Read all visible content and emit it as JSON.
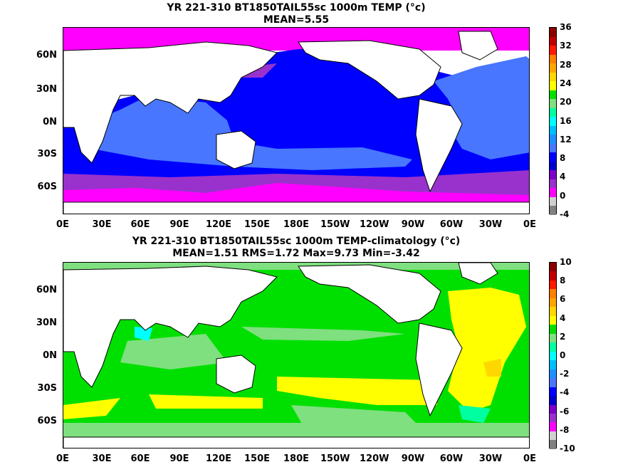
{
  "panels": [
    {
      "title_line1": "YR 221-310 BT1850TAIL55sc 1000m TEMP",
      "units": "(°c)",
      "title_line2": "MEAN=5.55",
      "colorbar": {
        "labels": [
          "36",
          "32",
          "28",
          "24",
          "20",
          "16",
          "12",
          "8",
          "4",
          "0",
          "-4"
        ],
        "colors": [
          "#8b0000",
          "#c00000",
          "#ff1a00",
          "#ff7f00",
          "#ffa500",
          "#ffd700",
          "#ffff00",
          "#00e000",
          "#7fe07f",
          "#00ffa0",
          "#00ffff",
          "#00bfff",
          "#1e90ff",
          "#4876ff",
          "#0000ff",
          "#0000cd",
          "#7b00c8",
          "#9932cc",
          "#ff00ff",
          "#d0d0d0",
          "#808080"
        ]
      }
    },
    {
      "title_line1": "YR 221-310 BT1850TAIL55sc 1000m TEMP-climatology",
      "units": "(°c)",
      "title_line2": "MEAN=1.51   RMS=1.72   Max=9.73   Min=-3.42",
      "colorbar": {
        "labels": [
          "10",
          "8",
          "6",
          "4",
          "2",
          "0",
          "-2",
          "-4",
          "-6",
          "-8",
          "-10"
        ],
        "colors": [
          "#8b0000",
          "#c00000",
          "#ff1a00",
          "#ff7f00",
          "#ffa500",
          "#ffd700",
          "#ffff00",
          "#00e000",
          "#7fe07f",
          "#00ffa0",
          "#00ffff",
          "#00bfff",
          "#1e90ff",
          "#4876ff",
          "#0000ff",
          "#0000cd",
          "#7b00c8",
          "#9932cc",
          "#ff00ff",
          "#d0d0d0",
          "#808080"
        ]
      }
    }
  ],
  "lat_labels": [
    "60N",
    "30N",
    "0N",
    "30S",
    "60S"
  ],
  "lon_labels": [
    "0E",
    "30E",
    "60E",
    "90E",
    "120E",
    "150E",
    "180E",
    "150W",
    "120W",
    "90W",
    "60W",
    "30W",
    "0E"
  ]
}
